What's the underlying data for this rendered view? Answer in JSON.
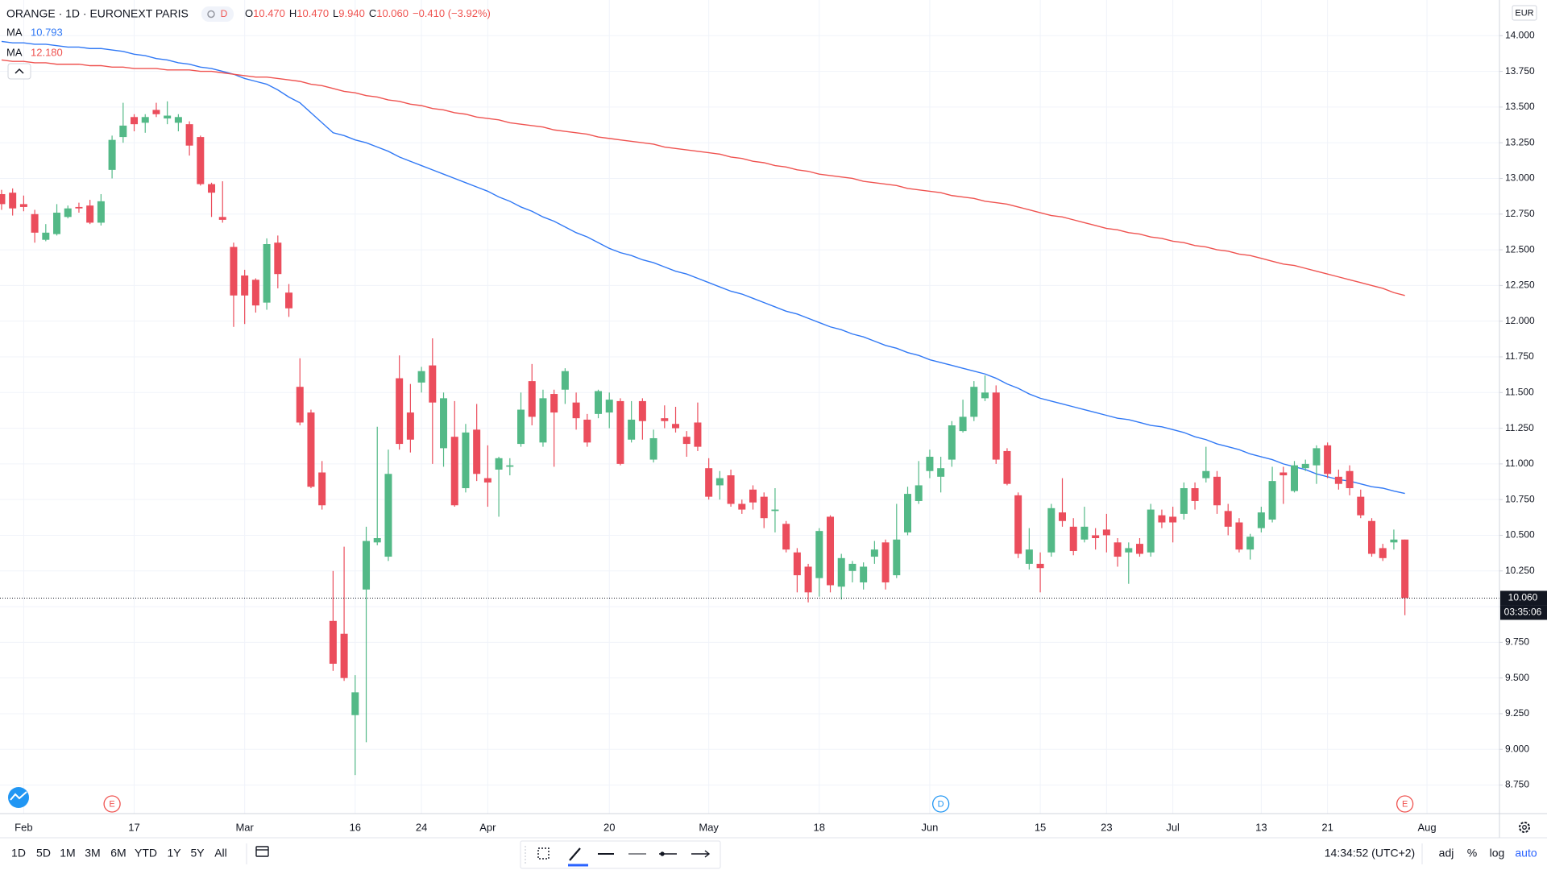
{
  "header": {
    "symbol": "ORANGE · 1D · EURONEXT PARIS",
    "interval_badge": "D",
    "ohlc": [
      {
        "key": "O",
        "value": "10.470"
      },
      {
        "key": "H",
        "value": "10.470"
      },
      {
        "key": "L",
        "value": "9.940"
      },
      {
        "key": "C",
        "value": "10.060"
      }
    ],
    "change": "−0.410 (−3.92%)"
  },
  "chart_data": {
    "type": "candlestick",
    "currency": "EUR",
    "grid": true,
    "up_color": "#53b987",
    "down_color": "#eb4d5c",
    "categories": [
      null,
      null,
      "Feb",
      null,
      null,
      null,
      null,
      null,
      null,
      null,
      null,
      null,
      "17",
      null,
      null,
      null,
      null,
      null,
      null,
      null,
      null,
      null,
      "Mar",
      null,
      null,
      null,
      null,
      null,
      null,
      null,
      null,
      null,
      "16",
      null,
      null,
      null,
      null,
      null,
      "24",
      null,
      null,
      null,
      null,
      null,
      "Apr",
      null,
      null,
      null,
      null,
      null,
      null,
      null,
      null,
      null,
      null,
      "20",
      null,
      null,
      null,
      null,
      null,
      null,
      null,
      null,
      "May",
      null,
      null,
      null,
      null,
      null,
      null,
      null,
      null,
      null,
      "18",
      null,
      null,
      null,
      null,
      null,
      null,
      null,
      null,
      null,
      "Jun",
      null,
      null,
      null,
      null,
      null,
      null,
      null,
      null,
      null,
      "15",
      null,
      null,
      null,
      null,
      null,
      "23",
      null,
      null,
      null,
      null,
      null,
      "Jul",
      null,
      null,
      null,
      null,
      null,
      null,
      null,
      "13",
      null,
      null,
      null,
      null,
      null,
      "21",
      null,
      null,
      null,
      null,
      null,
      null,
      null,
      null,
      "Aug",
      null,
      null,
      null,
      null,
      null,
      null
    ],
    "open": [
      12.89,
      12.9,
      12.82,
      12.75,
      12.57,
      12.61,
      12.73,
      12.8,
      12.81,
      12.69,
      13.06,
      13.29,
      13.43,
      13.39,
      13.48,
      13.42,
      13.39,
      13.38,
      13.29,
      12.96,
      12.73,
      12.52,
      12.32,
      12.29,
      12.13,
      12.55,
      12.2,
      11.54,
      11.36,
      10.94,
      9.9,
      9.81,
      9.24,
      10.12,
      10.45,
      10.35,
      11.6,
      11.36,
      11.57,
      11.69,
      11.11,
      11.19,
      10.83,
      11.24,
      10.9,
      10.96,
      10.98,
      11.14,
      11.58,
      11.15,
      11.49,
      11.52,
      11.43,
      11.31,
      11.35,
      11.36,
      11.44,
      11.17,
      11.44,
      11.03,
      11.32,
      11.28,
      11.19,
      11.29,
      10.97,
      10.85,
      10.92,
      10.72,
      10.82,
      10.77,
      10.67,
      10.58,
      10.38,
      10.28,
      10.2,
      10.63,
      10.14,
      10.25,
      10.17,
      10.35,
      10.45,
      10.22,
      10.52,
      10.74,
      10.95,
      10.91,
      11.03,
      11.23,
      11.33,
      11.46,
      11.5,
      11.09,
      10.78,
      10.3,
      10.3,
      10.38,
      10.66,
      10.56,
      10.47,
      10.5,
      10.54,
      10.45,
      10.38,
      10.44,
      10.38,
      10.64,
      10.63,
      10.65,
      10.83,
      10.9,
      10.91,
      10.67,
      10.59,
      10.4,
      10.55,
      10.61,
      10.94,
      10.81,
      10.97,
      10.99,
      11.13,
      10.91,
      10.95,
      10.77,
      10.6,
      10.41,
      10.45,
      10.47,
      null,
      null,
      null,
      null,
      null,
      null,
      null,
      null
    ],
    "high": [
      12.92,
      12.93,
      12.88,
      12.78,
      12.68,
      12.82,
      12.81,
      12.83,
      12.85,
      12.89,
      13.3,
      13.53,
      13.45,
      13.45,
      13.53,
      13.54,
      13.45,
      13.4,
      13.3,
      12.97,
      12.98,
      12.55,
      12.36,
      12.3,
      12.58,
      12.6,
      12.26,
      11.74,
      11.38,
      11.02,
      10.25,
      10.42,
      9.52,
      10.56,
      11.26,
      11.1,
      11.76,
      11.56,
      11.68,
      11.88,
      11.5,
      11.44,
      11.28,
      11.42,
      11.13,
      11.05,
      11.04,
      11.5,
      11.7,
      11.52,
      11.52,
      11.67,
      11.5,
      11.35,
      11.52,
      11.5,
      11.46,
      11.44,
      11.46,
      11.24,
      11.41,
      11.4,
      11.23,
      11.43,
      11.04,
      10.95,
      10.96,
      10.75,
      10.85,
      10.8,
      10.83,
      10.6,
      10.41,
      10.3,
      10.55,
      10.64,
      10.37,
      10.32,
      10.31,
      10.46,
      10.47,
      10.72,
      10.84,
      11.02,
      11.1,
      11.05,
      11.3,
      11.45,
      11.58,
      11.62,
      11.55,
      11.11,
      10.8,
      10.55,
      10.38,
      10.72,
      10.9,
      10.62,
      10.7,
      10.55,
      10.65,
      10.48,
      10.45,
      10.48,
      10.72,
      10.68,
      10.7,
      10.87,
      10.87,
      11.12,
      10.95,
      10.72,
      10.62,
      10.51,
      10.7,
      10.98,
      10.98,
      11.02,
      11.03,
      11.13,
      11.15,
      10.96,
      10.99,
      10.82,
      10.62,
      10.44,
      10.54,
      10.47,
      null,
      null,
      null,
      null,
      null,
      null,
      null,
      null
    ],
    "low": [
      12.78,
      12.74,
      12.77,
      12.55,
      12.56,
      12.6,
      12.72,
      12.76,
      12.68,
      12.67,
      13.0,
      13.25,
      13.33,
      13.32,
      13.43,
      13.38,
      13.33,
      13.16,
      12.95,
      12.73,
      12.69,
      11.96,
      11.98,
      12.06,
      12.08,
      12.23,
      12.03,
      11.27,
      10.83,
      10.68,
      9.55,
      9.48,
      8.82,
      9.05,
      10.43,
      10.32,
      11.1,
      11.08,
      11.5,
      11.0,
      10.98,
      10.7,
      10.8,
      10.88,
      10.7,
      10.63,
      10.92,
      11.12,
      11.27,
      11.12,
      10.98,
      11.42,
      11.24,
      11.12,
      11.32,
      11.25,
      10.99,
      11.15,
      11.17,
      11.01,
      11.25,
      11.22,
      11.05,
      11.09,
      10.75,
      10.75,
      10.7,
      10.65,
      10.68,
      10.55,
      10.52,
      10.38,
      10.1,
      10.03,
      10.07,
      10.1,
      10.05,
      10.17,
      10.12,
      10.3,
      10.12,
      10.2,
      10.5,
      10.72,
      10.9,
      10.8,
      10.98,
      11.22,
      11.3,
      11.44,
      11.0,
      10.85,
      10.34,
      10.26,
      10.1,
      10.35,
      10.56,
      10.36,
      10.45,
      10.4,
      10.38,
      10.28,
      10.16,
      10.35,
      10.35,
      10.55,
      10.45,
      10.61,
      10.68,
      10.87,
      10.65,
      10.5,
      10.38,
      10.33,
      10.52,
      10.59,
      10.72,
      10.8,
      10.95,
      10.86,
      10.9,
      10.82,
      10.78,
      10.62,
      10.35,
      10.32,
      10.4,
      9.94,
      null,
      null,
      null,
      null,
      null,
      null,
      null,
      null
    ],
    "close": [
      12.82,
      12.79,
      12.8,
      12.62,
      12.62,
      12.76,
      12.79,
      12.79,
      12.69,
      12.84,
      13.27,
      13.37,
      13.38,
      13.43,
      13.45,
      13.44,
      13.43,
      13.23,
      12.96,
      12.9,
      12.71,
      12.18,
      12.18,
      12.11,
      12.54,
      12.33,
      12.09,
      11.29,
      10.84,
      10.71,
      9.6,
      9.5,
      9.4,
      10.46,
      10.48,
      10.93,
      11.14,
      11.17,
      11.65,
      11.43,
      11.46,
      10.71,
      11.22,
      10.93,
      10.87,
      11.04,
      10.99,
      11.38,
      11.33,
      11.46,
      11.36,
      11.65,
      11.32,
      11.15,
      11.51,
      11.45,
      11.0,
      11.31,
      11.3,
      11.18,
      11.3,
      11.25,
      11.14,
      11.12,
      10.77,
      10.9,
      10.72,
      10.68,
      10.73,
      10.62,
      10.68,
      10.4,
      10.22,
      10.1,
      10.53,
      10.15,
      10.34,
      10.3,
      10.28,
      10.4,
      10.17,
      10.47,
      10.79,
      10.85,
      11.05,
      10.97,
      11.27,
      11.33,
      11.54,
      11.5,
      11.03,
      10.86,
      10.37,
      10.4,
      10.27,
      10.69,
      10.6,
      10.39,
      10.56,
      10.48,
      10.5,
      10.35,
      10.41,
      10.37,
      10.68,
      10.59,
      10.59,
      10.83,
      10.74,
      10.95,
      10.71,
      10.56,
      10.4,
      10.49,
      10.66,
      10.88,
      10.92,
      10.99,
      11.0,
      11.11,
      10.93,
      10.86,
      10.83,
      10.64,
      10.37,
      10.34,
      10.47,
      10.06,
      null,
      null,
      null,
      null,
      null,
      null,
      null,
      null
    ],
    "moving_averages": [
      {
        "name": "MA",
        "value_label": "10.793",
        "color": "#3179f5",
        "values": [
          13.96,
          13.95,
          13.95,
          13.94,
          13.94,
          13.93,
          13.92,
          13.92,
          13.91,
          13.91,
          13.9,
          13.89,
          13.87,
          13.86,
          13.84,
          13.83,
          13.81,
          13.8,
          13.78,
          13.77,
          13.75,
          13.73,
          13.7,
          13.68,
          13.66,
          13.62,
          13.57,
          13.53,
          13.46,
          13.39,
          13.32,
          13.3,
          13.27,
          13.25,
          13.22,
          13.19,
          13.15,
          13.12,
          13.09,
          13.06,
          13.03,
          13.0,
          12.97,
          12.94,
          12.91,
          12.87,
          12.84,
          12.8,
          12.77,
          12.73,
          12.7,
          12.66,
          12.62,
          12.59,
          12.55,
          12.51,
          12.48,
          12.46,
          12.43,
          12.41,
          12.38,
          12.35,
          12.33,
          12.3,
          12.27,
          12.24,
          12.21,
          12.19,
          12.16,
          12.13,
          12.1,
          12.07,
          12.05,
          12.02,
          11.99,
          11.96,
          11.94,
          11.91,
          11.89,
          11.86,
          11.83,
          11.81,
          11.78,
          11.76,
          11.73,
          11.71,
          11.69,
          11.67,
          11.65,
          11.63,
          11.6,
          11.56,
          11.53,
          11.49,
          11.46,
          11.44,
          11.42,
          11.4,
          11.38,
          11.36,
          11.34,
          11.32,
          11.31,
          11.29,
          11.27,
          11.26,
          11.24,
          11.22,
          11.19,
          11.17,
          11.14,
          11.12,
          11.1,
          11.07,
          11.05,
          11.03,
          11.0,
          10.98,
          10.96,
          10.93,
          10.91,
          10.89,
          10.88,
          10.86,
          10.84,
          10.83,
          10.81,
          10.793,
          null,
          null,
          null,
          null,
          null,
          null,
          null,
          null
        ]
      },
      {
        "name": "MA",
        "value_label": "12.180",
        "color": "#ef5350",
        "values": [
          13.83,
          13.82,
          13.82,
          13.81,
          13.81,
          13.8,
          13.8,
          13.8,
          13.79,
          13.79,
          13.78,
          13.78,
          13.77,
          13.77,
          13.77,
          13.76,
          13.76,
          13.76,
          13.75,
          13.75,
          13.74,
          13.73,
          13.72,
          13.71,
          13.71,
          13.7,
          13.69,
          13.68,
          13.66,
          13.65,
          13.63,
          13.61,
          13.6,
          13.58,
          13.57,
          13.55,
          13.54,
          13.52,
          13.51,
          13.49,
          13.48,
          13.46,
          13.45,
          13.43,
          13.42,
          13.41,
          13.39,
          13.38,
          13.37,
          13.36,
          13.34,
          13.33,
          13.32,
          13.31,
          13.29,
          13.28,
          13.27,
          13.26,
          13.25,
          13.24,
          13.22,
          13.21,
          13.2,
          13.19,
          13.18,
          13.17,
          13.15,
          13.14,
          13.12,
          13.11,
          13.09,
          13.08,
          13.06,
          13.05,
          13.03,
          13.02,
          13.01,
          13.0,
          12.98,
          12.97,
          12.96,
          12.95,
          12.93,
          12.92,
          12.91,
          12.9,
          12.88,
          12.87,
          12.86,
          12.84,
          12.83,
          12.82,
          12.8,
          12.78,
          12.76,
          12.74,
          12.73,
          12.71,
          12.69,
          12.67,
          12.65,
          12.64,
          12.62,
          12.61,
          12.59,
          12.58,
          12.56,
          12.55,
          12.53,
          12.52,
          12.5,
          12.49,
          12.47,
          12.46,
          12.44,
          12.42,
          12.4,
          12.39,
          12.37,
          12.35,
          12.33,
          12.31,
          12.29,
          12.27,
          12.25,
          12.23,
          12.2,
          12.18,
          null,
          null,
          null,
          null,
          null,
          null,
          null,
          null
        ]
      }
    ],
    "ylim": [
      8.55,
      14.25
    ],
    "yticks": [
      {
        "value": 8.75,
        "label": "8.750"
      },
      {
        "value": 9,
        "label": "9.000"
      },
      {
        "value": 9.25,
        "label": "9.250"
      },
      {
        "value": 9.5,
        "label": "9.500"
      },
      {
        "value": 9.75,
        "label": "9.750"
      },
      {
        "value": 10,
        "label": "10.000"
      },
      {
        "value": 10.25,
        "label": "10.250"
      },
      {
        "value": 10.5,
        "label": "10.500"
      },
      {
        "value": 10.75,
        "label": "10.750"
      },
      {
        "value": 11,
        "label": "11.000"
      },
      {
        "value": 11.25,
        "label": "11.250"
      },
      {
        "value": 11.5,
        "label": "11.500"
      },
      {
        "value": 11.75,
        "label": "11.750"
      },
      {
        "value": 12,
        "label": "12.000"
      },
      {
        "value": 12.25,
        "label": "12.250"
      },
      {
        "value": 12.5,
        "label": "12.500"
      },
      {
        "value": 12.75,
        "label": "12.750"
      },
      {
        "value": 13,
        "label": "13.000"
      },
      {
        "value": 13.25,
        "label": "13.250"
      },
      {
        "value": 13.5,
        "label": "13.500"
      },
      {
        "value": 13.75,
        "label": "13.750"
      },
      {
        "value": 14,
        "label": "14.000"
      }
    ],
    "last_price_label": "10.060",
    "countdown": "03:35:06",
    "events": [
      {
        "label": "E",
        "color": "#ef5350"
      },
      {
        "label": "D",
        "color": "#2196f3"
      },
      {
        "label": "E",
        "color": "#ef5350"
      }
    ]
  },
  "toolbar": {
    "ranges": [
      "1D",
      "5D",
      "1M",
      "3M",
      "6M",
      "YTD",
      "1Y",
      "5Y",
      "All"
    ],
    "clock": "14:34:52 (UTC+2)",
    "scale_options": [
      "adj",
      "%",
      "log",
      "auto"
    ]
  }
}
